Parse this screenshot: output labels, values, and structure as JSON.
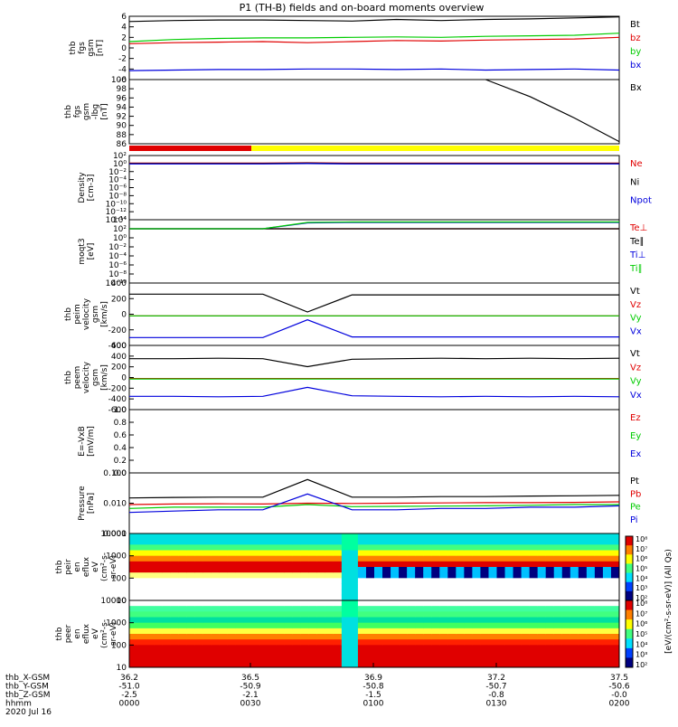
{
  "title": "P1 (TH-B) fields and on-board moments overview",
  "colors": {
    "black": "#000000",
    "red": "#e00000",
    "green": "#00cc00",
    "blue": "#0000dd",
    "yellow": "#ffff00",
    "cyan": "#00ffff"
  },
  "chart_data": [
    {
      "type": "line",
      "ylabel": [
        "thb",
        "fgs",
        "gsm",
        "[nT]"
      ],
      "yticks": [
        "6",
        "4",
        "2",
        "0",
        "-2",
        "-4",
        "-6"
      ],
      "ylim": [
        -6,
        6
      ],
      "legend": [
        "Bt",
        "bz",
        "by",
        "bx"
      ],
      "series": [
        {
          "name": "Bt",
          "color": "black",
          "values": [
            5.0,
            5.2,
            5.3,
            5.3,
            5.2,
            5.1,
            5.4,
            5.2,
            5.4,
            5.5,
            5.7,
            5.9
          ]
        },
        {
          "name": "bz",
          "color": "red",
          "values": [
            0.8,
            1.0,
            1.1,
            1.2,
            1.0,
            1.2,
            1.4,
            1.3,
            1.5,
            1.6,
            1.7,
            2.0
          ]
        },
        {
          "name": "by",
          "color": "green",
          "values": [
            1.2,
            1.6,
            1.8,
            1.9,
            1.9,
            2.0,
            2.1,
            2.0,
            2.2,
            2.3,
            2.4,
            2.8
          ]
        },
        {
          "name": "bx",
          "color": "blue",
          "values": [
            -4.3,
            -4.2,
            -4.1,
            -4.1,
            -4.0,
            -4.0,
            -4.1,
            -4.0,
            -4.2,
            -4.1,
            -4.0,
            -4.2
          ]
        }
      ]
    },
    {
      "type": "line",
      "ylabel": [
        "thb",
        "fgs",
        "gsm",
        "-lbg",
        "[nT]"
      ],
      "yticks": [
        "100",
        "98",
        "96",
        "94",
        "92",
        "90",
        "88",
        "86"
      ],
      "ylim": [
        85,
        100
      ],
      "legend": [
        "Bx"
      ],
      "series": [
        {
          "name": "Bx",
          "color": "black",
          "values": [
            null,
            null,
            null,
            null,
            null,
            null,
            null,
            null,
            100,
            96,
            91,
            85.5
          ]
        }
      ]
    },
    {
      "type": "line",
      "ylabel": [
        "Density",
        "[cm-3]"
      ],
      "yticks": [
        "10²",
        "10⁰",
        "10⁻²",
        "10⁻⁴",
        "10⁻⁶",
        "10⁻⁸",
        "10⁻¹⁰",
        "10⁻¹²",
        "10⁻¹⁴"
      ],
      "ylim": [
        -14,
        2
      ],
      "legend": [
        "Ne",
        "Ni",
        "Npot"
      ],
      "series": [
        {
          "name": "Ne",
          "color": "red",
          "values": [
            0.1,
            0.1,
            0.1,
            0.1,
            0.2,
            0.1,
            0.1,
            0.1,
            0.1,
            0.1,
            0.1,
            0.1
          ]
        },
        {
          "name": "Ni",
          "color": "black",
          "values": [
            0.0,
            0.0,
            0.0,
            0.0,
            0.1,
            0.0,
            0.0,
            0.0,
            0.0,
            0.0,
            0.0,
            0.0
          ]
        },
        {
          "name": "Npot",
          "color": "blue",
          "values": [
            -0.1,
            -0.1,
            -0.1,
            -0.1,
            0.0,
            -0.1,
            -0.1,
            -0.1,
            -0.1,
            -0.1,
            -0.1,
            -0.1
          ]
        }
      ]
    },
    {
      "type": "line",
      "ylabel": [
        "moqt3",
        "[eV]"
      ],
      "yticks": [
        "10⁴",
        "10²",
        "10⁰",
        "10⁻²",
        "10⁻⁴",
        "10⁻⁶",
        "10⁻⁸",
        "10⁻¹⁰"
      ],
      "ylim": [
        -10,
        4
      ],
      "legend": [
        "Te⊥",
        "Te∥",
        "Ti⊥",
        "Ti∥"
      ],
      "series": [
        {
          "name": "Te⊥",
          "color": "red",
          "values": [
            2.0,
            2.0,
            2.0,
            2.0,
            2.0,
            2.0,
            2.0,
            2.0,
            2.0,
            2.0,
            2.0,
            2.0
          ]
        },
        {
          "name": "Te∥",
          "color": "black",
          "values": [
            2.0,
            2.0,
            2.0,
            2.0,
            2.0,
            2.0,
            2.0,
            2.0,
            2.0,
            2.0,
            2.0,
            2.0
          ]
        },
        {
          "name": "Ti⊥",
          "color": "blue",
          "values": [
            2.0,
            2.0,
            2.0,
            2.0,
            3.3,
            3.4,
            3.4,
            3.4,
            3.4,
            3.4,
            3.4,
            3.4
          ]
        },
        {
          "name": "Ti∥",
          "color": "green",
          "values": [
            2.0,
            2.0,
            2.0,
            2.0,
            3.4,
            3.5,
            3.5,
            3.5,
            3.5,
            3.5,
            3.5,
            3.5
          ]
        }
      ]
    },
    {
      "type": "line",
      "ylabel": [
        "thb",
        "peim",
        "velocity",
        "gsm",
        "[km/s]"
      ],
      "yticks": [
        "400",
        "200",
        "0",
        "-200",
        "-400"
      ],
      "ylim": [
        -450,
        500
      ],
      "legend": [
        "Vt",
        "Vz",
        "Vy",
        "Vx"
      ],
      "series": [
        {
          "name": "Vt",
          "color": "black",
          "values": [
            330,
            330,
            330,
            330,
            60,
            320,
            320,
            320,
            320,
            320,
            320,
            320
          ]
        },
        {
          "name": "Vz",
          "color": "red",
          "values": [
            0,
            0,
            0,
            0,
            0,
            0,
            0,
            0,
            0,
            0,
            0,
            0
          ]
        },
        {
          "name": "Vy",
          "color": "green",
          "values": [
            0,
            0,
            0,
            0,
            0,
            0,
            0,
            0,
            0,
            0,
            0,
            0
          ]
        },
        {
          "name": "Vx",
          "color": "blue",
          "values": [
            -330,
            -330,
            -330,
            -330,
            -60,
            -320,
            -320,
            -320,
            -320,
            -320,
            -320,
            -320
          ]
        }
      ]
    },
    {
      "type": "line",
      "ylabel": [
        "thb",
        "peem",
        "velocity",
        "gsm",
        "[km/s]"
      ],
      "yticks": [
        "600",
        "400",
        "200",
        "0",
        "-200",
        "-400",
        "-600"
      ],
      "ylim": [
        -650,
        650
      ],
      "legend": [
        "Vt",
        "Vz",
        "Vy",
        "Vx"
      ],
      "series": [
        {
          "name": "Vt",
          "color": "black",
          "values": [
            380,
            380,
            390,
            380,
            220,
            370,
            380,
            390,
            380,
            390,
            380,
            390
          ]
        },
        {
          "name": "Vz",
          "color": "red",
          "values": [
            -20,
            -20,
            -20,
            -20,
            -20,
            -20,
            -20,
            -20,
            -20,
            -20,
            -20,
            -20
          ]
        },
        {
          "name": "Vy",
          "color": "green",
          "values": [
            -30,
            -30,
            -30,
            -30,
            -30,
            -30,
            -30,
            -30,
            -30,
            -30,
            -30,
            -30
          ]
        },
        {
          "name": "Vx",
          "color": "blue",
          "values": [
            -380,
            -380,
            -390,
            -380,
            -200,
            -370,
            -380,
            -390,
            -380,
            -390,
            -380,
            -390
          ]
        }
      ]
    },
    {
      "type": "line",
      "ylabel": [
        "E=-VxB",
        "[mV/m]"
      ],
      "yticks": [
        "1.0",
        "0.8",
        "0.6",
        "0.4",
        "0.2",
        "0.0"
      ],
      "ylim": [
        0,
        1
      ],
      "legend": [
        "Ez",
        "Ey",
        "Ex"
      ],
      "series": []
    },
    {
      "type": "line",
      "ylabel": [
        "Pressure",
        "[nPa]"
      ],
      "yticks": [
        "0.100",
        "0.010",
        "0.001"
      ],
      "ylim": [
        -3,
        -0.7
      ],
      "legend": [
        "Pt",
        "Pb",
        "Pe",
        "Pi"
      ],
      "series": [
        {
          "name": "Pt",
          "color": "black",
          "values": [
            -1.65,
            -1.63,
            -1.62,
            -1.62,
            -0.95,
            -1.62,
            -1.62,
            -1.6,
            -1.6,
            -1.58,
            -1.57,
            -1.55
          ]
        },
        {
          "name": "Pb",
          "color": "red",
          "values": [
            -1.9,
            -1.88,
            -1.87,
            -1.88,
            -1.85,
            -1.86,
            -1.85,
            -1.84,
            -1.83,
            -1.83,
            -1.82,
            -1.8
          ]
        },
        {
          "name": "Pe",
          "color": "green",
          "values": [
            -2.05,
            -2.0,
            -2.0,
            -2.0,
            -1.9,
            -1.98,
            -1.97,
            -1.96,
            -1.95,
            -1.93,
            -1.9,
            -1.9
          ]
        },
        {
          "name": "Pi",
          "color": "blue",
          "values": [
            -2.2,
            -2.15,
            -2.1,
            -2.1,
            -1.5,
            -2.1,
            -2.1,
            -2.05,
            -2.05,
            -2.0,
            -2.0,
            -1.95
          ]
        }
      ]
    },
    {
      "type": "heatmap",
      "ylabel": [
        "thb",
        "peir",
        "en",
        "eflux",
        "eV",
        "(cm²-s-",
        "sr-eV)"
      ],
      "yticks": [
        "10000",
        "1000",
        "100",
        "10"
      ],
      "colorbar_ticks": [
        "10⁸",
        "10⁷",
        "10⁶",
        "10⁵",
        "10⁴",
        "10³",
        "10²"
      ]
    },
    {
      "type": "heatmap",
      "ylabel": [
        "thb",
        "peer",
        "en",
        "eflux",
        "eV",
        "(cm²-s-",
        "sr-eV)"
      ],
      "yticks": [
        "10000",
        "1000",
        "100",
        "10"
      ],
      "colorbar_ticks": [
        "10⁸",
        "10⁷",
        "10⁶",
        "10⁵",
        "10⁴",
        "10³",
        "10²"
      ]
    }
  ],
  "colorbar_label": "[eV/(cm²-s-sr-eV)] (All Qs)",
  "xaxis": {
    "rows": [
      {
        "label": "thb_X-GSM",
        "values": [
          "36.2",
          "36.5",
          "36.9",
          "37.2",
          "37.5"
        ]
      },
      {
        "label": "thb_Y-GSM",
        "values": [
          "-51.0",
          "-50.9",
          "-50.8",
          "-50.7",
          "-50.6"
        ]
      },
      {
        "label": "thb_Z-GSM",
        "values": [
          "-2.5",
          "-2.1",
          "-1.5",
          "-0.8",
          "-0.0"
        ]
      },
      {
        "label": "hhmm",
        "values": [
          "0000",
          "0030",
          "0100",
          "0130",
          "0200"
        ]
      }
    ],
    "date": "2020 Jul 16"
  }
}
